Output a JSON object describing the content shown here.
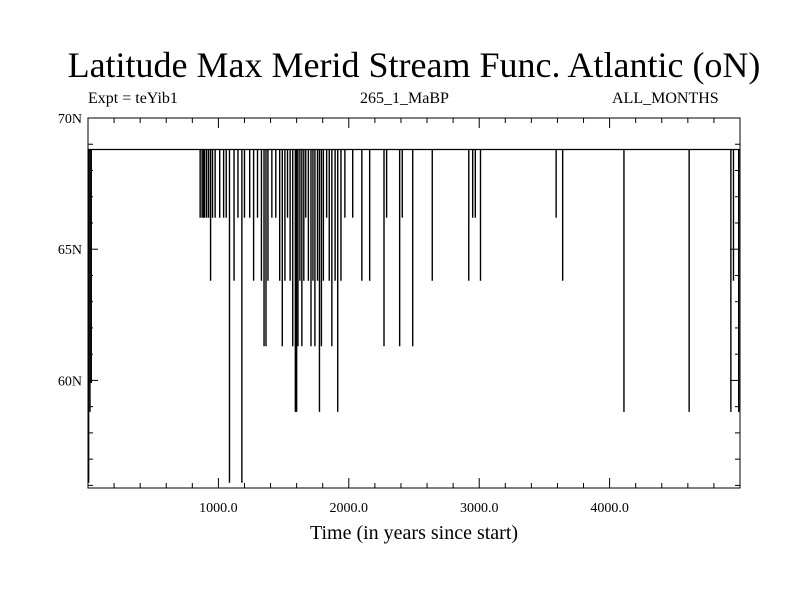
{
  "chart_data": {
    "type": "line",
    "title": "Latitude Max Merid Stream Func. Atlantic (oN)",
    "subtitle_left": "Expt = teYib1",
    "subtitle_center": "265_1_MaBP",
    "subtitle_right": "ALL_MONTHS",
    "xlabel": "Time (in years since start)",
    "ylabel": "",
    "xlim": [
      0,
      5000
    ],
    "ylim": [
      55.9,
      70.0
    ],
    "x_ticks": [
      1000,
      2000,
      3000,
      4000
    ],
    "x_tick_labels": [
      "1000.0",
      "2000.0",
      "3000.0",
      "4000.0"
    ],
    "y_ticks": [
      60,
      65,
      70
    ],
    "y_tick_labels": [
      "60N",
      "65N",
      "70N"
    ],
    "grid": false,
    "baseline": 68.8,
    "spikes": [
      {
        "x": 5,
        "y": 56.1
      },
      {
        "x": 15,
        "y": 58.8
      },
      {
        "x": 25,
        "y": 59.9
      },
      {
        "x": 860,
        "y": 66.2
      },
      {
        "x": 875,
        "y": 66.2
      },
      {
        "x": 885,
        "y": 66.2
      },
      {
        "x": 895,
        "y": 66.2
      },
      {
        "x": 910,
        "y": 66.2
      },
      {
        "x": 925,
        "y": 66.2
      },
      {
        "x": 940,
        "y": 63.8
      },
      {
        "x": 955,
        "y": 66.2
      },
      {
        "x": 975,
        "y": 66.2
      },
      {
        "x": 1010,
        "y": 66.2
      },
      {
        "x": 1040,
        "y": 66.2
      },
      {
        "x": 1060,
        "y": 66.2
      },
      {
        "x": 1085,
        "y": 56.1
      },
      {
        "x": 1120,
        "y": 63.8
      },
      {
        "x": 1150,
        "y": 66.2
      },
      {
        "x": 1180,
        "y": 56.1
      },
      {
        "x": 1200,
        "y": 66.2
      },
      {
        "x": 1240,
        "y": 66.2
      },
      {
        "x": 1270,
        "y": 63.8
      },
      {
        "x": 1300,
        "y": 66.2
      },
      {
        "x": 1330,
        "y": 63.8
      },
      {
        "x": 1350,
        "y": 61.3
      },
      {
        "x": 1365,
        "y": 61.3
      },
      {
        "x": 1380,
        "y": 63.8
      },
      {
        "x": 1410,
        "y": 66.2
      },
      {
        "x": 1440,
        "y": 66.2
      },
      {
        "x": 1470,
        "y": 63.8
      },
      {
        "x": 1490,
        "y": 61.3
      },
      {
        "x": 1510,
        "y": 63.8
      },
      {
        "x": 1530,
        "y": 66.2
      },
      {
        "x": 1550,
        "y": 63.8
      },
      {
        "x": 1570,
        "y": 61.3
      },
      {
        "x": 1590,
        "y": 58.8
      },
      {
        "x": 1600,
        "y": 58.8
      },
      {
        "x": 1610,
        "y": 61.3
      },
      {
        "x": 1625,
        "y": 63.8
      },
      {
        "x": 1640,
        "y": 61.3
      },
      {
        "x": 1655,
        "y": 63.8
      },
      {
        "x": 1670,
        "y": 66.2
      },
      {
        "x": 1690,
        "y": 63.8
      },
      {
        "x": 1710,
        "y": 61.3
      },
      {
        "x": 1725,
        "y": 63.8
      },
      {
        "x": 1740,
        "y": 61.3
      },
      {
        "x": 1760,
        "y": 63.8
      },
      {
        "x": 1775,
        "y": 58.8
      },
      {
        "x": 1790,
        "y": 61.3
      },
      {
        "x": 1805,
        "y": 63.8
      },
      {
        "x": 1830,
        "y": 66.2
      },
      {
        "x": 1850,
        "y": 63.8
      },
      {
        "x": 1870,
        "y": 61.3
      },
      {
        "x": 1895,
        "y": 63.8
      },
      {
        "x": 1915,
        "y": 58.8
      },
      {
        "x": 1940,
        "y": 63.8
      },
      {
        "x": 1970,
        "y": 66.2
      },
      {
        "x": 2030,
        "y": 66.2
      },
      {
        "x": 2100,
        "y": 63.8
      },
      {
        "x": 2160,
        "y": 63.8
      },
      {
        "x": 2270,
        "y": 61.3
      },
      {
        "x": 2290,
        "y": 66.2
      },
      {
        "x": 2390,
        "y": 61.3
      },
      {
        "x": 2410,
        "y": 66.2
      },
      {
        "x": 2490,
        "y": 61.3
      },
      {
        "x": 2640,
        "y": 63.8
      },
      {
        "x": 2920,
        "y": 63.8
      },
      {
        "x": 2950,
        "y": 66.2
      },
      {
        "x": 2970,
        "y": 66.2
      },
      {
        "x": 3010,
        "y": 63.8
      },
      {
        "x": 3590,
        "y": 66.2
      },
      {
        "x": 3640,
        "y": 63.8
      },
      {
        "x": 4110,
        "y": 58.8
      },
      {
        "x": 4610,
        "y": 58.8
      },
      {
        "x": 4930,
        "y": 58.8
      },
      {
        "x": 4950,
        "y": 63.8
      },
      {
        "x": 4990,
        "y": 58.8
      }
    ]
  }
}
